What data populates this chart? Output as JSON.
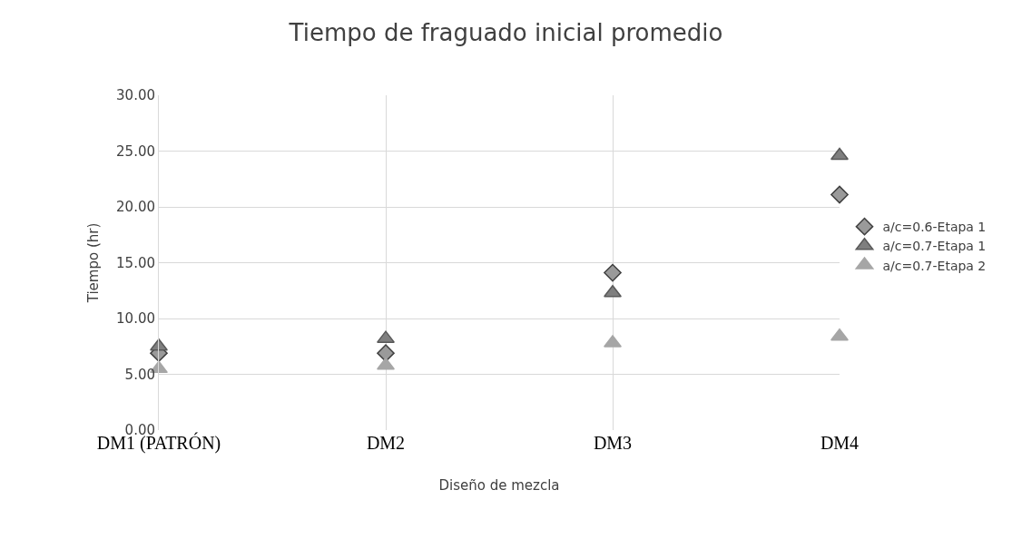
{
  "chart_data": {
    "type": "scatter",
    "title": "Tiempo de fraguado inicial promedio",
    "xlabel": "Diseño de mezcla",
    "ylabel": "Tiempo (hr)",
    "categories": [
      "DM1 (PATRÓN)",
      "DM2",
      "DM3",
      "DM4"
    ],
    "series": [
      {
        "name": "a/c=0.6-Etapa 1",
        "color": "#9a9a9a",
        "marker": "diamond",
        "values": [
          6.9,
          6.9,
          14.1,
          21.1
        ]
      },
      {
        "name": "a/c=0.7-Etapa 1",
        "color": "#7f7f7f",
        "marker": "triangle",
        "values": [
          7.5,
          8.2,
          12.3,
          24.6
        ]
      },
      {
        "name": "a/c=0.7-Etapa 2",
        "color": "#a6a6a6",
        "marker": "triangle",
        "values": [
          5.5,
          5.8,
          7.8,
          8.4
        ]
      }
    ],
    "ylim": [
      0,
      30
    ],
    "yticks": [
      {
        "value": 0,
        "label": "0.00"
      },
      {
        "value": 5,
        "label": "5.00"
      },
      {
        "value": 10,
        "label": "10.00"
      },
      {
        "value": 15,
        "label": "15.00"
      },
      {
        "value": 20,
        "label": "20.00"
      },
      {
        "value": 25,
        "label": "25.00"
      },
      {
        "value": 30,
        "label": "30.00"
      }
    ],
    "grid": true,
    "legend": "right"
  }
}
